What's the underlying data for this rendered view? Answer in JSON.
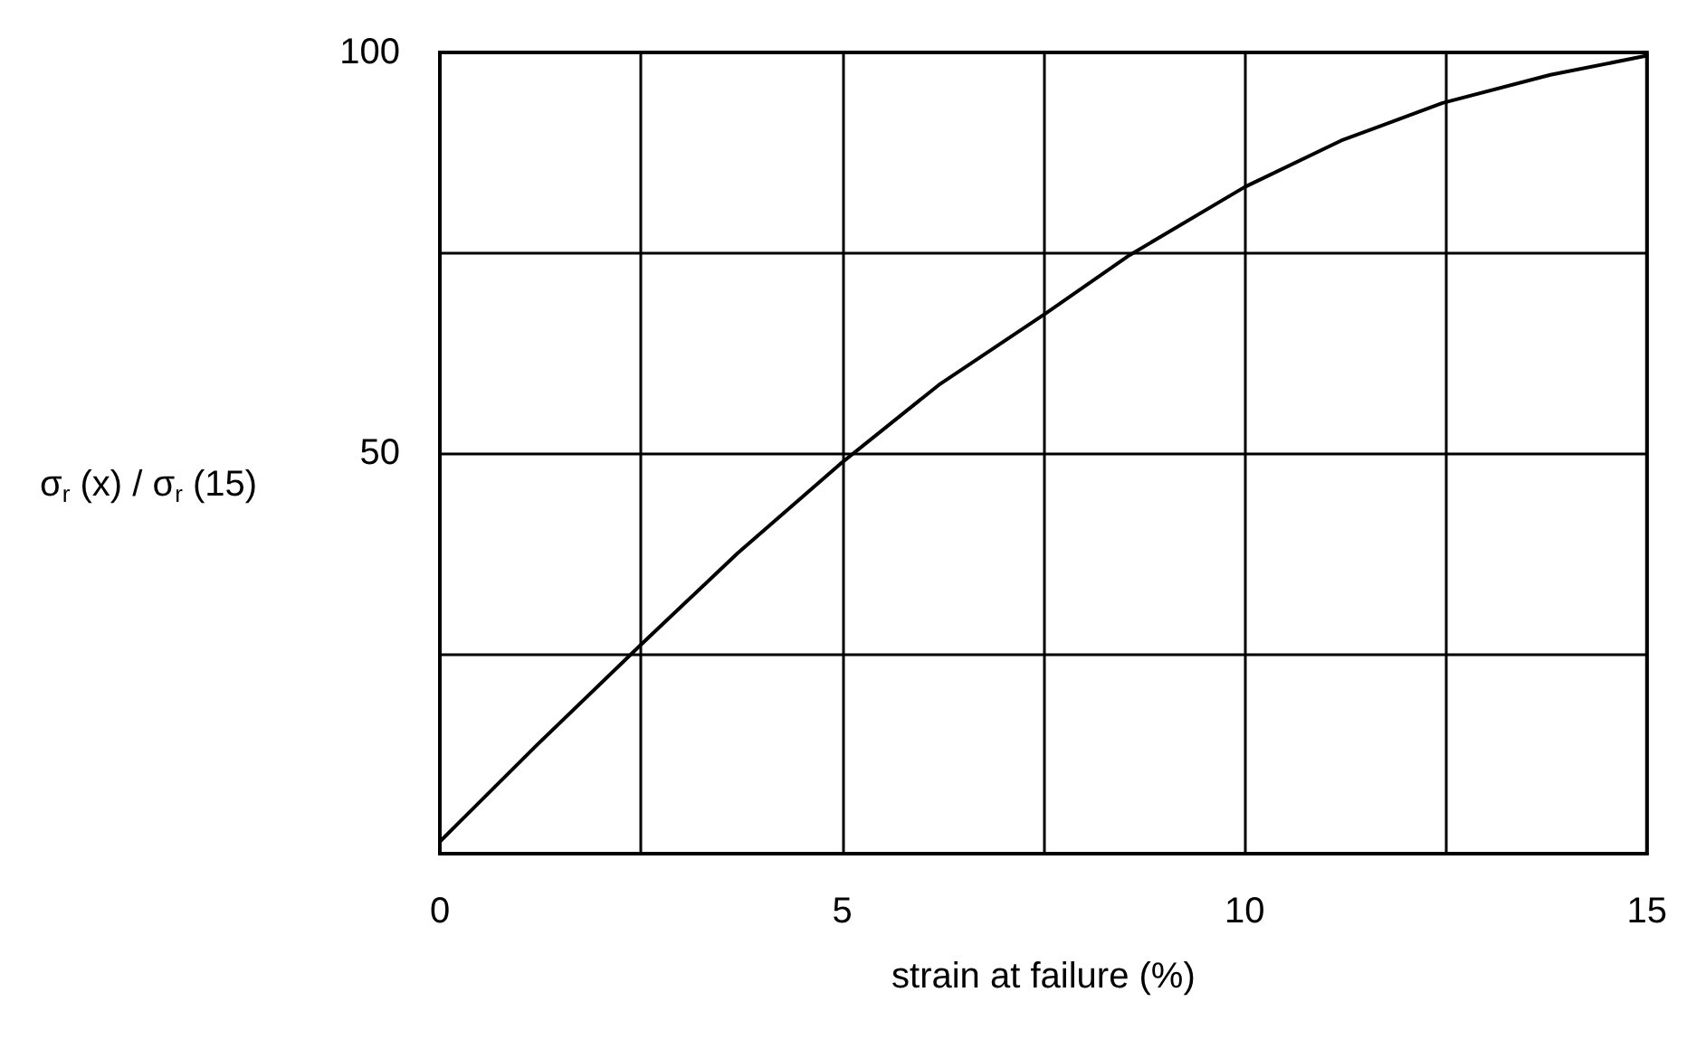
{
  "chart_data": {
    "type": "line",
    "xlabel": "strain at failure (%)",
    "ylabel": "σ$_{r}$ (x) / σ$_{r}$ (15)",
    "x": [
      0,
      1.2,
      2.48,
      3.7,
      4.97,
      6.2,
      7.54,
      8.57,
      10,
      11.2,
      12.46,
      13.8,
      15
    ],
    "series": [
      {
        "color": "#000000",
        "values": [
          1.5,
          13.5,
          25.9,
          37.5,
          48.6,
          58.5,
          67.5,
          74.7,
          83.2,
          89,
          93.7,
          97.2,
          99.6
        ]
      }
    ],
    "xlim": [
      0,
      15
    ],
    "xticks": [
      0,
      {
        "value": 2.5,
        "label": null
      },
      5,
      {
        "value": 7.5,
        "label": null
      },
      10,
      {
        "value": 12.5,
        "label": null
      },
      15
    ],
    "ylim": [
      0,
      100
    ],
    "yticks": [
      {
        "value": 0,
        "label": null
      },
      {
        "value": 25,
        "label": null
      },
      50,
      {
        "value": 75,
        "label": null
      },
      100
    ],
    "grid": true,
    "marker": "none",
    "line_style": "solid"
  }
}
